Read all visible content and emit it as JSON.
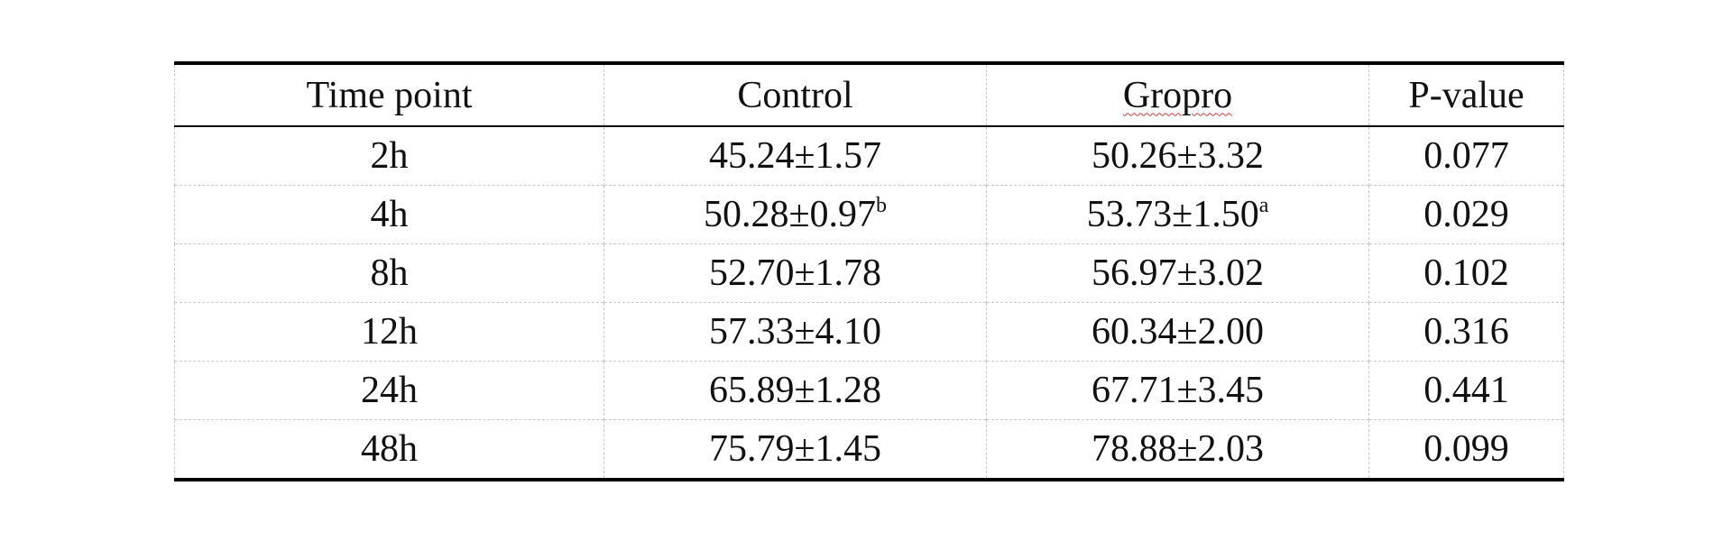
{
  "table": {
    "headers": [
      "Time point",
      "Control",
      "Gropro",
      "P-value"
    ],
    "rows": [
      {
        "time": "2h",
        "control": "45.24±1.57",
        "control_sup": "",
        "gropro": "50.26±3.32",
        "gropro_sup": "",
        "p": "0.077"
      },
      {
        "time": "4h",
        "control": "50.28±0.97",
        "control_sup": "b",
        "gropro": "53.73±1.50",
        "gropro_sup": "a",
        "p": "0.029"
      },
      {
        "time": "8h",
        "control": "52.70±1.78",
        "control_sup": "",
        "gropro": "56.97±3.02",
        "gropro_sup": "",
        "p": "0.102"
      },
      {
        "time": "12h",
        "control": "57.33±4.10",
        "control_sup": "",
        "gropro": "60.34±2.00",
        "gropro_sup": "",
        "p": "0.316"
      },
      {
        "time": "24h",
        "control": "65.89±1.28",
        "control_sup": "",
        "gropro": "67.71±3.45",
        "gropro_sup": "",
        "p": "0.441"
      },
      {
        "time": "48h",
        "control": "75.79±1.45",
        "control_sup": "",
        "gropro": "78.88±2.03",
        "gropro_sup": "",
        "p": "0.099"
      }
    ]
  }
}
